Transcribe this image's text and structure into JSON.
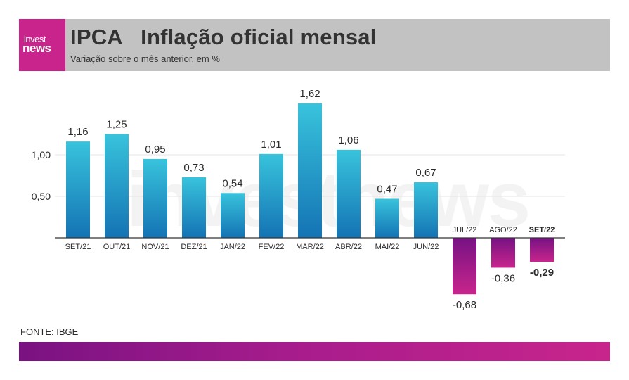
{
  "header": {
    "logo_line1": "invest",
    "logo_line2": "news",
    "title": "IPCA   Inflação oficial mensal",
    "subtitle": "Variação sobre o mês anterior, em %"
  },
  "watermark": "investnews",
  "source": "FONTE: IBGE",
  "colors": {
    "positive_top": "#38c3dc",
    "positive_bottom": "#1473b4",
    "negative_top": "#761283",
    "negative_bottom": "#c8258c",
    "header_bg": "#c2c2c2",
    "brand": "#c8248c"
  },
  "chart_data": {
    "type": "bar",
    "categories": [
      "SET/21",
      "OUT/21",
      "NOV/21",
      "DEZ/21",
      "JAN/22",
      "FEV/22",
      "MAR/22",
      "ABR/22",
      "MAI/22",
      "JUN/22",
      "JUL/22",
      "AGO/22",
      "SET/22"
    ],
    "values": [
      1.16,
      1.25,
      0.95,
      0.73,
      0.54,
      1.01,
      1.62,
      1.06,
      0.47,
      0.67,
      -0.68,
      -0.36,
      -0.29
    ],
    "value_labels": [
      "1,16",
      "1,25",
      "0,95",
      "0,73",
      "0,54",
      "1,01",
      "1,62",
      "1,06",
      "0,47",
      "0,67",
      "-0,68",
      "-0,36",
      "-0,29"
    ],
    "highlight_index": 12,
    "yticks": [
      0.5,
      1.0
    ],
    "ytick_labels": [
      "0,50",
      "1,00"
    ],
    "ylim": [
      -0.85,
      1.85
    ],
    "grid": true,
    "xlabel": "",
    "ylabel": ""
  }
}
